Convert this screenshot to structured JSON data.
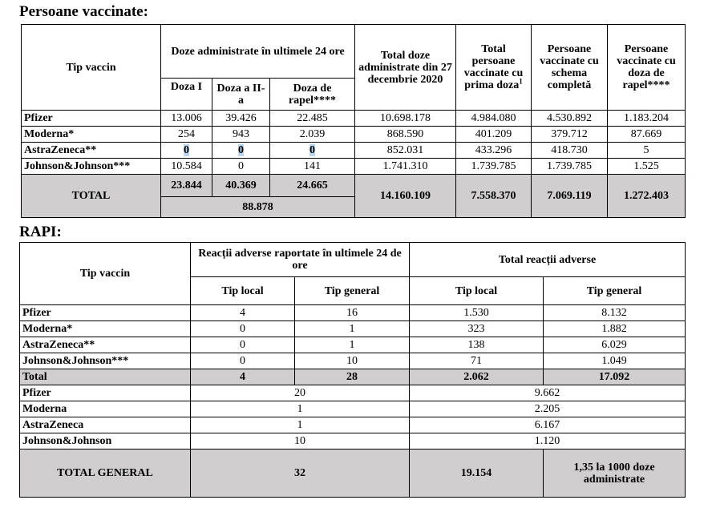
{
  "vaccinated": {
    "title": "Persoane vaccinate:",
    "headers": {
      "vaccine_type": "Tip vaccin",
      "doses_24h": "Doze administrate în ultimele 24 ore",
      "dose1": "Doza I",
      "dose2": "Doza a II-a",
      "booster": "Doza de rapel****",
      "total_doses": "Total doze administrate din 27 decembrie 2020",
      "first_dose": "Total persoane vaccinate cu prima doza",
      "first_dose_sup": "1",
      "complete": "Persoane vaccinate cu schema completă",
      "booster_people": "Persoane vaccinate cu doza de rapel****"
    },
    "rows": [
      {
        "name": "Pfizer",
        "d1": "13.006",
        "d2": "39.426",
        "r": "22.485",
        "total": "10.698.178",
        "first": "4.984.080",
        "complete": "4.530.892",
        "booster": "1.183.204"
      },
      {
        "name": "Moderna*",
        "d1": "254",
        "d2": "943",
        "r": "2.039",
        "total": "868.590",
        "first": "401.209",
        "complete": "379.712",
        "booster": "87.669"
      },
      {
        "name": "AstraZeneca**",
        "d1": "0",
        "d2": "0",
        "r": "0",
        "total": "852.031",
        "first": "433.296",
        "complete": "418.730",
        "booster": "5"
      },
      {
        "name": "Johnson&Johnson***",
        "d1": "10.584",
        "d2": "0",
        "r": "141",
        "total": "1.741.310",
        "first": "1.739.785",
        "complete": "1.739.785",
        "booster": "1.525"
      }
    ],
    "total": {
      "label": "TOTAL",
      "d1": "23.844",
      "d2": "40.369",
      "r": "24.665",
      "sum24": "88.878",
      "total": "14.160.109",
      "first": "7.558.370",
      "complete": "7.069.119",
      "booster": "1.272.403"
    }
  },
  "rapi": {
    "title": "RAPI:",
    "headers": {
      "vaccine_type": "Tip vaccin",
      "reported_24h": "Reacții adverse raportate în ultimele 24 de ore",
      "total_adverse": "Total reacții adverse",
      "local": "Tip local",
      "general": "Tip general"
    },
    "rows": [
      {
        "name": "Pfizer",
        "l24": "4",
        "g24": "16",
        "lt": "1.530",
        "gt": "8.132"
      },
      {
        "name": "Moderna*",
        "l24": "0",
        "g24": "1",
        "lt": "323",
        "gt": "1.882"
      },
      {
        "name": "AstraZeneca**",
        "l24": "0",
        "g24": "1",
        "lt": "138",
        "gt": "6.029"
      },
      {
        "name": "Johnson&Johnson***",
        "l24": "0",
        "g24": "10",
        "lt": "71",
        "gt": "1.049"
      }
    ],
    "total": {
      "label": "Total",
      "l24": "4",
      "g24": "28",
      "lt": "2.062",
      "gt": "17.092"
    },
    "summary_rows": [
      {
        "name": "Pfizer",
        "sum24": "20",
        "sumt": "9.662"
      },
      {
        "name": "Moderna",
        "sum24": "1",
        "sumt": "2.205"
      },
      {
        "name": "AstraZeneca",
        "sum24": "1",
        "sumt": "6.167"
      },
      {
        "name": "Johnson&Johnson",
        "sum24": "10",
        "sumt": "1.120"
      }
    ],
    "grand_total": {
      "label": "TOTAL GENERAL",
      "sum24": "32",
      "sumt": "19.154",
      "rate": "1,35 la 1000 doze administrate"
    }
  }
}
